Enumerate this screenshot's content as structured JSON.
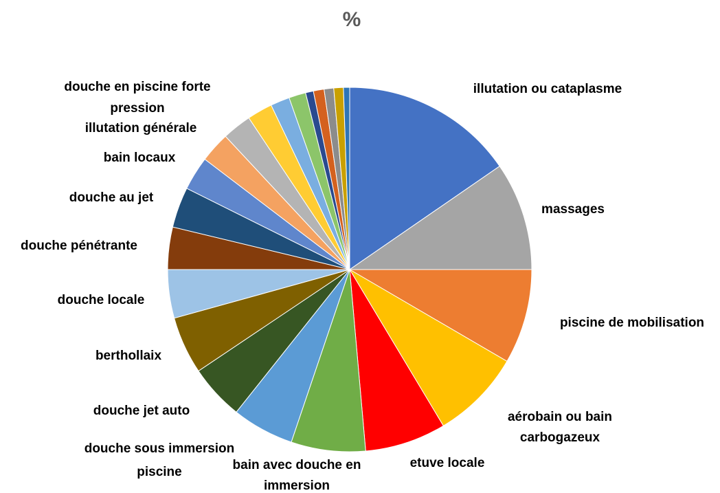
{
  "chart_data": {
    "type": "pie",
    "title": "%",
    "categories": [
      "illutation ou cataplasme",
      "massages",
      "piscine de mobilisation",
      "aérobain ou bain carbogazeux",
      "etuve locale",
      "bain avec douche en immersion",
      "douche sous immersion piscine",
      "douche jet auto",
      "berthollaix",
      "douche locale",
      "douche pénétrante",
      "douche au jet",
      "bain locaux",
      "illutation générale",
      "douche en piscine forte pression",
      null,
      null,
      null,
      null,
      null,
      null,
      null,
      null
    ],
    "values": [
      15.4,
      9.6,
      8.4,
      8.0,
      7.2,
      6.6,
      5.5,
      4.9,
      5.1,
      4.3,
      3.75,
      3.6,
      3.0,
      2.7,
      2.6,
      2.25,
      1.7,
      1.5,
      0.7,
      0.95,
      0.85,
      0.85,
      0.55
    ],
    "colors": [
      "#4472c4",
      "#a5a5a5",
      "#ed7d31",
      "#ffc000",
      "#ff0000",
      "#70ad47",
      "#5b9bd5",
      "#375623",
      "#7f6000",
      "#9dc3e6",
      "#843c0c",
      "#1f4e79",
      "#5f86cc",
      "#f4a261",
      "#b4b4b4",
      "#ffcc33",
      "#7aaee0",
      "#8cc56a",
      "#2a4a8f",
      "#d4611f",
      "#8c8c8c",
      "#c9a000",
      "#2e75b6"
    ]
  }
}
